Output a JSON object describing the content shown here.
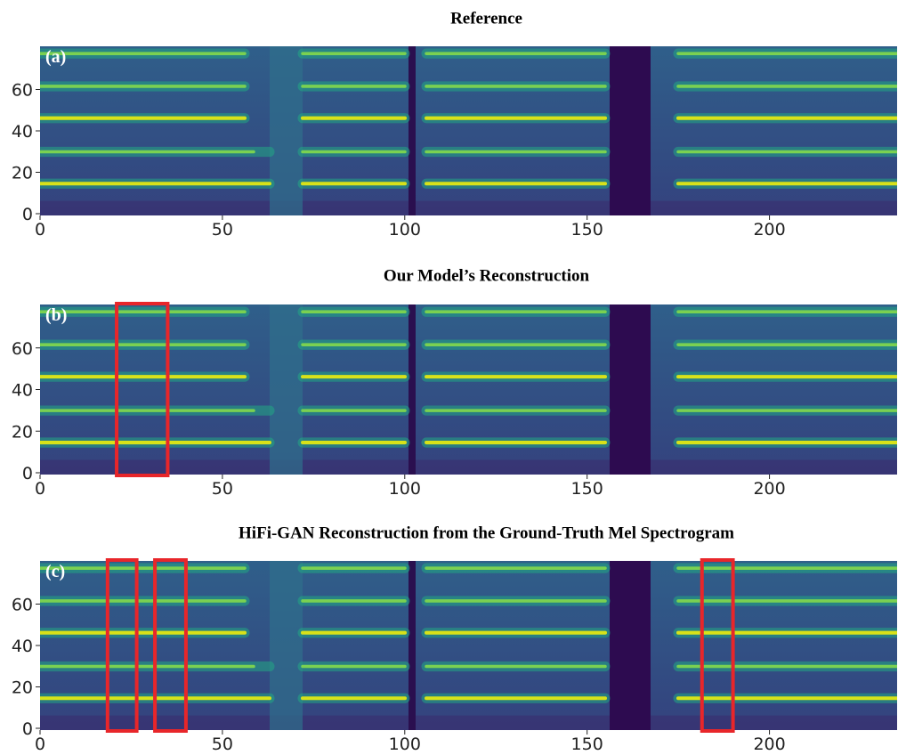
{
  "chart_data": [
    {
      "type": "heatmap",
      "title": "Reference",
      "panel_label": "(a)",
      "xlim": [
        0,
        235
      ],
      "ylim": [
        0,
        80
      ],
      "xticks": [
        0,
        50,
        100,
        150,
        200
      ],
      "yticks": [
        0,
        20,
        40,
        60
      ],
      "highlights": [],
      "highlight_color": "#e8262a"
    },
    {
      "type": "heatmap",
      "title": "Our Model’s Reconstruction",
      "panel_label": "(b)",
      "xlim": [
        0,
        235
      ],
      "ylim": [
        0,
        80
      ],
      "xticks": [
        0,
        50,
        100,
        150,
        200
      ],
      "yticks": [
        0,
        20,
        40,
        60
      ],
      "highlights": [
        [
          21,
          35
        ]
      ],
      "highlight_color": "#e8262a"
    },
    {
      "type": "heatmap",
      "title": "HiFi-GAN Reconstruction from the Ground-Truth Mel Spectrogram",
      "panel_label": "(c)",
      "xlim": [
        0,
        235
      ],
      "ylim": [
        0,
        80
      ],
      "xticks": [
        0,
        50,
        100,
        150,
        200
      ],
      "yticks": [
        0,
        20,
        40,
        60
      ],
      "highlights": [
        [
          18.5,
          26.5
        ],
        [
          31.5,
          40
        ],
        [
          181.5,
          190
        ]
      ],
      "highlight_color": "#e8262a"
    }
  ]
}
